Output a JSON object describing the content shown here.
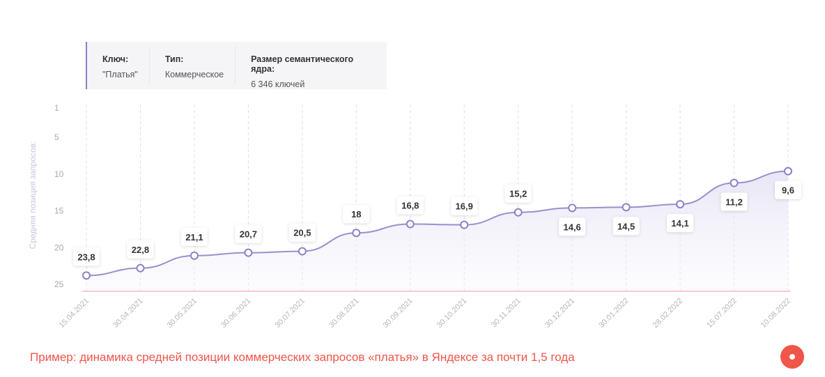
{
  "info": [
    {
      "label": "Ключ:",
      "value": "\"Платья\""
    },
    {
      "label": "Тип:",
      "value": "Коммерческое"
    },
    {
      "label": "Размер семантического ядра:",
      "value": "6 346 ключей"
    }
  ],
  "chart_data": {
    "type": "line",
    "ylabel": "Средняя позиция запросов:",
    "y_ticks": [
      1,
      5,
      10,
      15,
      20,
      25
    ],
    "ylim": [
      1,
      25
    ],
    "y_inverted": true,
    "grid": "vertical dashed",
    "categories": [
      "15.04.2021",
      "30.04.2021",
      "30.05.2021",
      "30.06.2021",
      "30.07.2021",
      "30.08.2021",
      "30.09.2021",
      "30.10.2021",
      "30.11.2021",
      "30.12.2021",
      "30.01.2022",
      "28.02.2022",
      "15.07.2022",
      "10.08.2022"
    ],
    "values": [
      23.8,
      22.8,
      21.1,
      20.7,
      20.5,
      18,
      16.8,
      16.9,
      15.2,
      14.6,
      14.5,
      14.1,
      11.2,
      9.6
    ],
    "data_labels": [
      "23,8",
      "22,8",
      "21,1",
      "20,7",
      "20,5",
      "18",
      "16,8",
      "16,9",
      "15,2",
      "14,6",
      "14,5",
      "14,1",
      "11,2",
      "9,6"
    ],
    "line_color": "#9a8fcf",
    "baseline_color": "#f6c9cf"
  },
  "caption": "Пример: динамика средней позиции коммерческих запросов «платья» в Яндексе за почти 1,5 года",
  "accent": "#f0554a"
}
